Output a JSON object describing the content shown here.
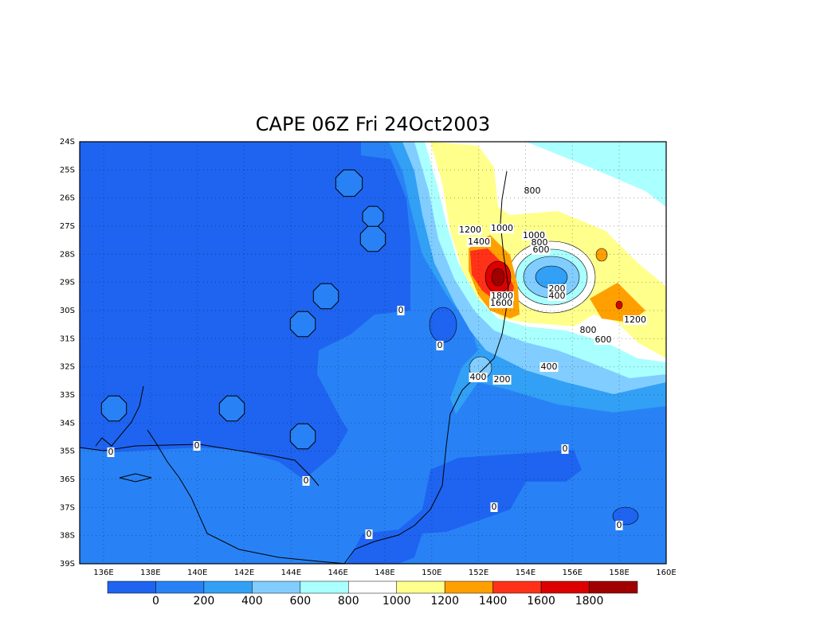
{
  "map": {
    "title": "CAPE 06Z Fri 24Oct2003",
    "lat_labels": [
      "24S",
      "25S",
      "26S",
      "27S",
      "28S",
      "29S",
      "30S",
      "31S",
      "32S",
      "33S",
      "34S",
      "35S",
      "36S",
      "37S",
      "38S",
      "39S"
    ],
    "lon_labels": [
      "136E",
      "138E",
      "140E",
      "142E",
      "144E",
      "146E",
      "148E",
      "150E",
      "152E",
      "154E",
      "156E",
      "158E",
      "160E"
    ],
    "colorbar": {
      "levels": [
        0,
        200,
        400,
        600,
        800,
        1000,
        1200,
        1400,
        1600,
        1800
      ],
      "colors": [
        "#1e64f0",
        "#2882f5",
        "#32a0f5",
        "#82cdff",
        "#aaffff",
        "#ffffff",
        "#ffff8c",
        "#ffa000",
        "#ff3219",
        "#dc0000",
        "#a00000"
      ]
    },
    "contour_labels": [
      "0",
      "0",
      "0",
      "0",
      "0",
      "0",
      "0",
      "0",
      "0",
      "800",
      "800",
      "1200",
      "1200",
      "1000",
      "1000",
      "800",
      "600",
      "1400",
      "1800",
      "1600",
      "200",
      "200",
      "400",
      "400",
      "400",
      "600"
    ]
  }
}
